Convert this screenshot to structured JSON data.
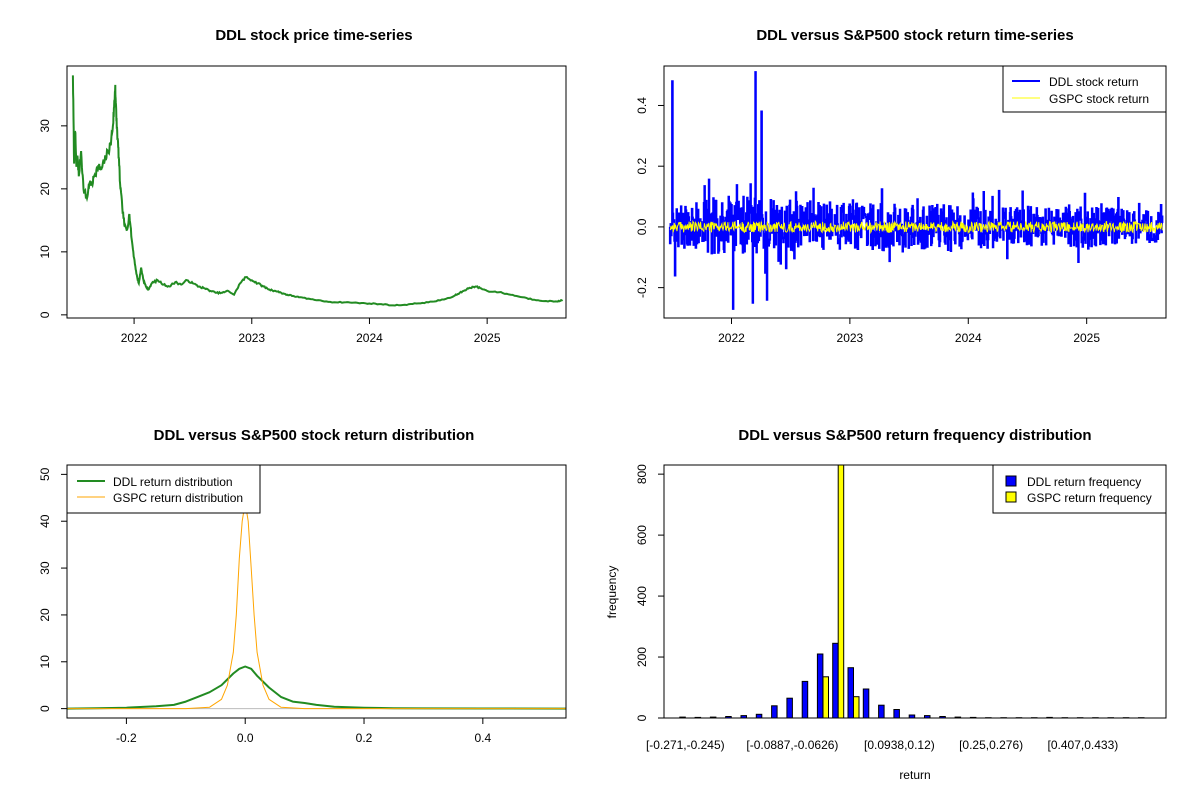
{
  "chart_data": [
    {
      "id": "price",
      "type": "line",
      "title": "DDL stock price time-series",
      "xlabel": "",
      "ylabel": "",
      "xlim": [
        2021.43,
        2025.67
      ],
      "ylim": [
        -0.5,
        39.5
      ],
      "xticks": [
        2022,
        2023,
        2024,
        2025
      ],
      "xtick_labels": [
        "2022",
        "2023",
        "2024",
        "2025"
      ],
      "yticks": [
        0,
        10,
        20,
        30
      ],
      "ytick_labels": [
        "0",
        "10",
        "20",
        "30"
      ],
      "series": [
        {
          "name": "DDL stock price",
          "color": "#228B22",
          "x": [
            2021.48,
            2021.49,
            2021.5,
            2021.51,
            2021.52,
            2021.53,
            2021.55,
            2021.57,
            2021.6,
            2021.62,
            2021.64,
            2021.66,
            2021.68,
            2021.7,
            2021.72,
            2021.75,
            2021.78,
            2021.8,
            2021.82,
            2021.83,
            2021.84,
            2021.85,
            2021.86,
            2021.87,
            2021.88,
            2021.9,
            2021.92,
            2021.94,
            2021.96,
            2021.98,
            2022.0,
            2022.02,
            2022.04,
            2022.06,
            2022.08,
            2022.1,
            2022.12,
            2022.15,
            2022.2,
            2022.25,
            2022.3,
            2022.35,
            2022.4,
            2022.45,
            2022.5,
            2022.55,
            2022.6,
            2022.65,
            2022.7,
            2022.75,
            2022.8,
            2022.85,
            2022.9,
            2022.95,
            2023.0,
            2023.05,
            2023.1,
            2023.15,
            2023.2,
            2023.25,
            2023.3,
            2023.35,
            2023.4,
            2023.5,
            2023.6,
            2023.7,
            2023.8,
            2023.9,
            2024.0,
            2024.1,
            2024.2,
            2024.3,
            2024.4,
            2024.5,
            2024.6,
            2024.7,
            2024.75,
            2024.8,
            2024.85,
            2024.9,
            2024.95,
            2025.0,
            2025.1,
            2025.2,
            2025.3,
            2025.4,
            2025.5,
            2025.6,
            2025.64
          ],
          "y": [
            38.0,
            24.0,
            29.0,
            23.5,
            25.0,
            22.0,
            26.0,
            20.0,
            18.5,
            21.0,
            20.5,
            22.0,
            23.0,
            23.5,
            23.0,
            24.5,
            26.0,
            27.0,
            30.0,
            33.0,
            36.5,
            31.0,
            28.0,
            25.0,
            21.0,
            17.0,
            14.0,
            13.5,
            16.0,
            12.0,
            9.0,
            6.5,
            5.0,
            7.5,
            5.5,
            4.5,
            4.0,
            5.0,
            5.5,
            4.8,
            4.5,
            5.2,
            4.8,
            5.5,
            5.0,
            4.5,
            4.2,
            3.8,
            3.5,
            3.5,
            3.8,
            3.2,
            5.0,
            6.0,
            5.5,
            5.0,
            4.5,
            4.0,
            3.8,
            3.5,
            3.2,
            3.0,
            2.8,
            2.5,
            2.2,
            2.0,
            2.0,
            1.9,
            1.8,
            1.7,
            1.5,
            1.6,
            1.8,
            2.0,
            2.3,
            2.8,
            3.3,
            3.8,
            4.3,
            4.5,
            4.2,
            3.8,
            3.6,
            3.2,
            2.8,
            2.4,
            2.2,
            2.1,
            2.4
          ]
        }
      ]
    },
    {
      "id": "returns",
      "type": "line",
      "title": "DDL versus S&P500 stock return time-series",
      "xlabel": "",
      "ylabel": "",
      "xlim": [
        2021.43,
        2025.67
      ],
      "ylim": [
        -0.3,
        0.53
      ],
      "xticks": [
        2022,
        2023,
        2024,
        2025
      ],
      "xtick_labels": [
        "2022",
        "2023",
        "2024",
        "2025"
      ],
      "yticks": [
        -0.2,
        0.0,
        0.2,
        0.4
      ],
      "ytick_labels": [
        "-0.2",
        "0.0",
        "0.2",
        "0.4"
      ],
      "legend": {
        "position": "top-right",
        "entries": [
          "DDL stock return",
          "GSPC stock return"
        ],
        "colors": [
          "#0000ff",
          "#ffff00"
        ]
      },
      "series": [
        {
          "name": "DDL stock return",
          "color": "#0000ff",
          "x_start": 2021.48,
          "x_end": 2025.64,
          "amplitude_profile": {
            "x": [
              2021.48,
              2022.0,
              2022.3,
              2023.0,
              2024.0,
              2025.0,
              2025.64
            ],
            "amp": [
              0.06,
              0.11,
              0.09,
              0.08,
              0.07,
              0.065,
              0.05
            ]
          },
          "spikes": [
            {
              "x": 2021.5,
              "y": 0.48
            },
            {
              "x": 2021.52,
              "y": -0.16
            },
            {
              "x": 2022.01,
              "y": -0.27
            },
            {
              "x": 2022.2,
              "y": 0.51
            },
            {
              "x": 2022.25,
              "y": 0.38
            },
            {
              "x": 2022.18,
              "y": -0.25
            },
            {
              "x": 2022.3,
              "y": -0.24
            }
          ]
        },
        {
          "name": "GSPC stock return",
          "color": "#ffff00",
          "x_start": 2021.48,
          "x_end": 2025.64,
          "amplitude": 0.018
        }
      ]
    },
    {
      "id": "density",
      "type": "line",
      "title": "DDL versus S&P500 stock return distribution",
      "xlabel": "",
      "ylabel": "",
      "xlim": [
        -0.3,
        0.54
      ],
      "ylim": [
        -2,
        52
      ],
      "xticks": [
        -0.2,
        0.0,
        0.2,
        0.4
      ],
      "xtick_labels": [
        "-0.2",
        "0.0",
        "0.2",
        "0.4"
      ],
      "yticks": [
        0,
        10,
        20,
        30,
        40,
        50
      ],
      "ytick_labels": [
        "0",
        "10",
        "20",
        "30",
        "40",
        "50"
      ],
      "legend": {
        "position": "top-left",
        "entries": [
          "DDL return distribution",
          "GSPC return distribution"
        ],
        "colors": [
          "#228B22",
          "#FFA500"
        ]
      },
      "series": [
        {
          "name": "DDL return distribution",
          "color": "#228B22",
          "x": [
            -0.3,
            -0.25,
            -0.2,
            -0.15,
            -0.12,
            -0.1,
            -0.08,
            -0.06,
            -0.04,
            -0.02,
            -0.01,
            0.0,
            0.01,
            0.02,
            0.04,
            0.06,
            0.08,
            0.1,
            0.12,
            0.15,
            0.2,
            0.25,
            0.3,
            0.4,
            0.54
          ],
          "y": [
            0.0,
            0.1,
            0.2,
            0.5,
            0.8,
            1.5,
            2.5,
            3.5,
            5.0,
            7.5,
            8.5,
            9.0,
            8.5,
            7.0,
            4.5,
            2.5,
            1.5,
            1.2,
            0.8,
            0.4,
            0.2,
            0.1,
            0.05,
            0.02,
            0.0
          ]
        },
        {
          "name": "GSPC return distribution",
          "color": "#FFA500",
          "x": [
            -0.3,
            -0.1,
            -0.06,
            -0.04,
            -0.03,
            -0.02,
            -0.015,
            -0.01,
            -0.005,
            0.0,
            0.005,
            0.01,
            0.015,
            0.02,
            0.03,
            0.04,
            0.06,
            0.1,
            0.54
          ],
          "y": [
            0.0,
            0.0,
            0.3,
            2.0,
            5.0,
            12.0,
            20.0,
            32.0,
            40.0,
            44.0,
            40.0,
            30.0,
            20.0,
            12.0,
            5.0,
            2.0,
            0.3,
            0.0,
            0.0
          ]
        }
      ]
    },
    {
      "id": "histogram",
      "type": "bar",
      "title": "DDL versus S&P500 return frequency distribution",
      "xlabel": "return",
      "ylabel": "frequency",
      "ylim": [
        0,
        830
      ],
      "yticks": [
        0,
        200,
        400,
        600,
        800
      ],
      "ytick_labels": [
        "0",
        "200",
        "400",
        "600",
        "800"
      ],
      "xtick_labels": [
        "[-0.271,-0.245)",
        "[-0.0887,-0.0626)",
        "[0.0938,0.12)",
        "[0.25,0.276)",
        "[0.407,0.433)"
      ],
      "xtick_bin_index": [
        0,
        7,
        14,
        20,
        26
      ],
      "legend": {
        "position": "top-right",
        "entries": [
          "DDL return frequency",
          "GSPC return frequency"
        ],
        "colors": [
          "#0000ff",
          "#ffff00"
        ]
      },
      "series": [
        {
          "name": "DDL return frequency",
          "color": "#0000ff",
          "values": [
            3,
            2,
            3,
            5,
            8,
            12,
            40,
            65,
            120,
            210,
            245,
            165,
            95,
            42,
            28,
            10,
            8,
            5,
            3,
            2,
            1,
            1,
            1,
            1,
            2,
            1,
            1,
            1,
            1,
            1,
            1
          ]
        },
        {
          "name": "GSPC return frequency",
          "color": "#ffff00",
          "values": [
            0,
            0,
            0,
            0,
            0,
            0,
            0,
            0,
            0,
            135,
            830,
            70,
            0,
            0,
            0,
            0,
            0,
            0,
            0,
            0,
            0,
            0,
            0,
            0,
            0,
            0,
            0,
            0,
            0,
            0,
            0
          ]
        }
      ]
    }
  ]
}
